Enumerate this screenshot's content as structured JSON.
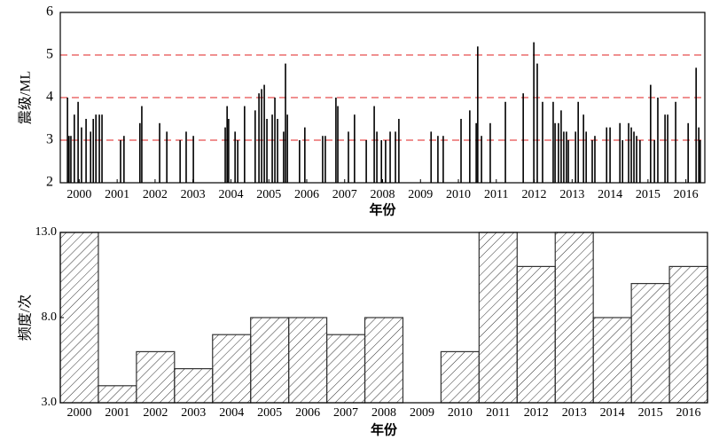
{
  "chart_data": [
    {
      "type": "stem",
      "y_label": "震级/ML",
      "x_label": "年份",
      "color": "#000000",
      "grid_color": "#e02020",
      "xlim": [
        2000,
        2017
      ],
      "ylim": [
        2,
        6
      ],
      "yticks": [
        2,
        3,
        4,
        5,
        6
      ],
      "grid": true,
      "xticks": [
        {
          "value": 2000.5,
          "label": "2000"
        },
        {
          "value": 2001.5,
          "label": "2001"
        },
        {
          "value": 2002.5,
          "label": "2002"
        },
        {
          "value": 2003.5,
          "label": "2003"
        },
        {
          "value": 2004.5,
          "label": "2004"
        },
        {
          "value": 2005.5,
          "label": "2005"
        },
        {
          "value": 2006.5,
          "label": "2006"
        },
        {
          "value": 2007.5,
          "label": "2007"
        },
        {
          "value": 2008.5,
          "label": "2008"
        },
        {
          "value": 2009.5,
          "label": "2009"
        },
        {
          "value": 2010.5,
          "label": "2010"
        },
        {
          "value": 2011.5,
          "label": "2011"
        },
        {
          "value": 2012.5,
          "label": "2012"
        },
        {
          "value": 2013.5,
          "label": "2013"
        },
        {
          "value": 2014.5,
          "label": "2014"
        },
        {
          "value": 2015.5,
          "label": "2015"
        },
        {
          "value": 2016.5,
          "label": "2016"
        }
      ],
      "x": [
        2000.19,
        2000.23,
        2000.28,
        2000.37,
        2000.47,
        2000.56,
        2000.68,
        2000.8,
        2000.87,
        2000.94,
        2001.03,
        2001.1,
        2001.59,
        2001.68,
        2002.1,
        2002.15,
        2002.62,
        2002.81,
        2003.16,
        2003.32,
        2003.51,
        2004.35,
        2004.4,
        2004.44,
        2004.61,
        2004.68,
        2004.86,
        2005.14,
        2005.24,
        2005.31,
        2005.38,
        2005.45,
        2005.59,
        2005.66,
        2005.73,
        2005.89,
        2005.94,
        2005.99,
        2006.31,
        2006.45,
        2006.92,
        2006.99,
        2007.27,
        2007.32,
        2007.6,
        2007.76,
        2008.07,
        2008.28,
        2008.35,
        2008.47,
        2008.58,
        2008.7,
        2008.84,
        2008.93,
        2009.78,
        2009.96,
        2010.1,
        2010.57,
        2010.8,
        2010.97,
        2011.01,
        2011.11,
        2011.34,
        2011.74,
        2012.21,
        2012.49,
        2012.58,
        2012.72,
        2013.0,
        2013.05,
        2013.14,
        2013.21,
        2013.28,
        2013.35,
        2013.4,
        2013.59,
        2013.66,
        2013.8,
        2013.87,
        2014.03,
        2014.1,
        2014.41,
        2014.5,
        2014.76,
        2014.83,
        2014.99,
        2015.06,
        2015.13,
        2015.2,
        2015.29,
        2015.57,
        2015.67,
        2015.76,
        2015.95,
        2016.02,
        2016.23,
        2016.56,
        2016.77,
        2016.84,
        2016.88
      ],
      "values": [
        4.0,
        3.1,
        3.1,
        3.6,
        3.9,
        3.3,
        3.5,
        3.2,
        3.5,
        3.6,
        3.6,
        3.6,
        3.0,
        3.1,
        3.4,
        3.8,
        3.4,
        3.2,
        3.0,
        3.2,
        3.1,
        3.3,
        3.8,
        3.5,
        3.2,
        3.0,
        3.8,
        3.7,
        4.1,
        4.2,
        4.3,
        3.5,
        3.6,
        4.0,
        3.5,
        3.2,
        4.8,
        3.6,
        3.0,
        3.3,
        3.1,
        3.1,
        4.0,
        3.8,
        3.2,
        3.6,
        3.0,
        3.8,
        3.2,
        3.0,
        3.0,
        3.2,
        3.2,
        3.5,
        3.2,
        3.1,
        3.1,
        3.5,
        3.7,
        3.4,
        5.2,
        3.1,
        3.4,
        3.9,
        4.1,
        5.3,
        4.8,
        3.9,
        3.9,
        3.4,
        3.4,
        3.7,
        3.2,
        3.2,
        3.0,
        3.2,
        3.9,
        3.6,
        3.2,
        3.0,
        3.1,
        3.3,
        3.3,
        3.4,
        3.0,
        3.4,
        3.3,
        3.2,
        3.1,
        3.0,
        4.3,
        3.0,
        4.0,
        3.6,
        3.6,
        3.9,
        3.4,
        4.7,
        3.3,
        3.0
      ]
    },
    {
      "type": "bar",
      "y_label": "频度/次",
      "x_label": "年份",
      "color": "#333333",
      "ylim": [
        3,
        13
      ],
      "yticks": [
        {
          "value": 3,
          "label": "3.0"
        },
        {
          "value": 8,
          "label": "8.0"
        },
        {
          "value": 13,
          "label": "13.0"
        }
      ],
      "categories": [
        "2000",
        "2001",
        "2002",
        "2003",
        "2004",
        "2005",
        "2006",
        "2007",
        "2008",
        "2009",
        "2010",
        "2011",
        "2012",
        "2013",
        "2014",
        "2015",
        "2016"
      ],
      "values": [
        13,
        4,
        6,
        5,
        7,
        8,
        8,
        7,
        8,
        3,
        6,
        13,
        11,
        13,
        8,
        10,
        11
      ]
    }
  ]
}
